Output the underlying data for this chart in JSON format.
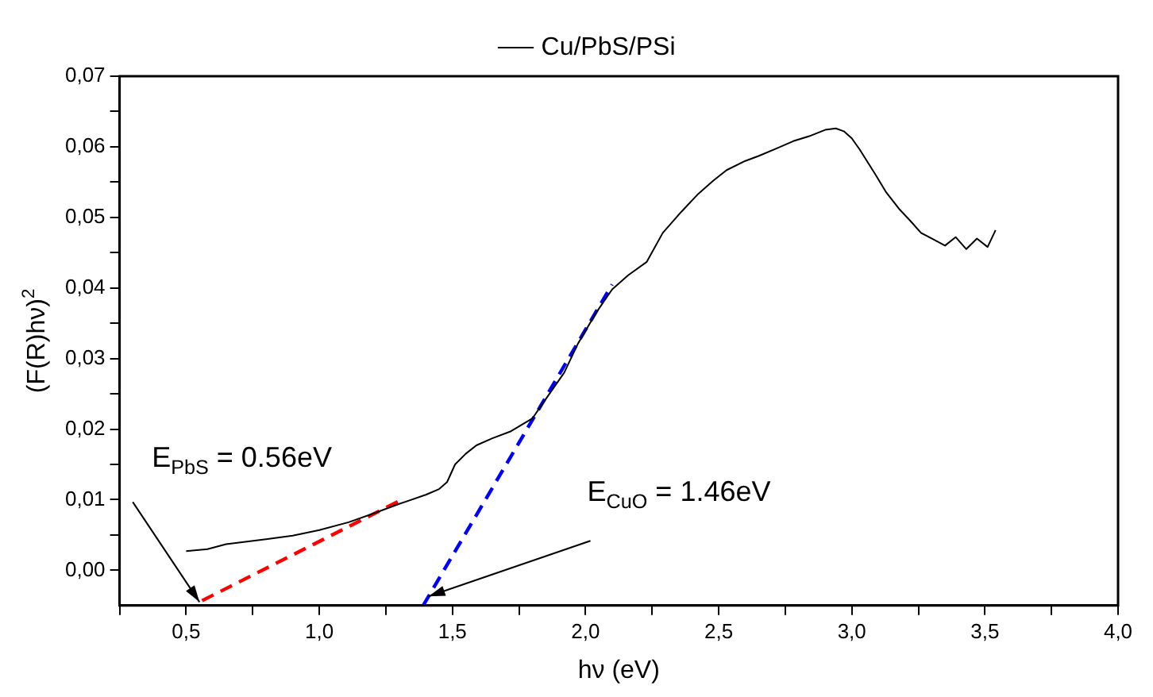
{
  "chart_data": {
    "type": "line",
    "xlabel": "hν (eV)",
    "ylabel": "(F(R)hν)$^{2}$",
    "xlim": [
      0.25,
      4.0
    ],
    "ylim": [
      -0.005,
      0.07
    ],
    "xticks": [
      {
        "value": 0.25,
        "label": null
      },
      {
        "value": 0.5,
        "label": "0,5"
      },
      {
        "value": 0.75,
        "label": null
      },
      {
        "value": 1.0,
        "label": "1,0"
      },
      {
        "value": 1.25,
        "label": null
      },
      {
        "value": 1.5,
        "label": "1,5"
      },
      {
        "value": 1.75,
        "label": null
      },
      {
        "value": 2.0,
        "label": "2,0"
      },
      {
        "value": 2.25,
        "label": null
      },
      {
        "value": 2.5,
        "label": "2,5"
      },
      {
        "value": 2.75,
        "label": null
      },
      {
        "value": 3.0,
        "label": "3,0"
      },
      {
        "value": 3.25,
        "label": null
      },
      {
        "value": 3.5,
        "label": "3,5"
      },
      {
        "value": 3.75,
        "label": null
      },
      {
        "value": 4.0,
        "label": "4,0"
      }
    ],
    "yticks": [
      {
        "value": 0,
        "label": "0,00"
      },
      {
        "value": 0.005,
        "label": null
      },
      {
        "value": 0.01,
        "label": "0,01"
      },
      {
        "value": 0.015,
        "label": null
      },
      {
        "value": 0.02,
        "label": "0,02"
      },
      {
        "value": 0.025,
        "label": null
      },
      {
        "value": 0.03,
        "label": "0,03"
      },
      {
        "value": 0.035,
        "label": null
      },
      {
        "value": 0.04,
        "label": "0,04"
      },
      {
        "value": 0.045,
        "label": null
      },
      {
        "value": 0.05,
        "label": "0,05"
      },
      {
        "value": 0.055,
        "label": null
      },
      {
        "value": 0.06,
        "label": "0,06"
      },
      {
        "value": 0.065,
        "label": null
      },
      {
        "value": 0.07,
        "label": "0,07"
      }
    ],
    "grid": false,
    "legend": "top",
    "marker": "none",
    "series": [
      {
        "name": "Cu/PbS/PSi",
        "color": "#000000",
        "line_style": "solid",
        "x": [
          0.5,
          0.58,
          0.65,
          0.8,
          0.9,
          1.0,
          1.11,
          1.2,
          1.3,
          1.4,
          1.45,
          1.48,
          1.51,
          1.55,
          1.59,
          1.65,
          1.72,
          1.8,
          1.87,
          1.92,
          1.97,
          2.04,
          2.1,
          2.16,
          2.23,
          2.29,
          2.36,
          2.42,
          2.48,
          2.53,
          2.6,
          2.65,
          2.72,
          2.78,
          2.84,
          2.9,
          2.94,
          2.97,
          3.0,
          3.03,
          3.09,
          3.13,
          3.18,
          3.22,
          3.26,
          3.3,
          3.35,
          3.39,
          3.43,
          3.47,
          3.51,
          3.54
        ],
        "values": [
          0.0027,
          0.003,
          0.0037,
          0.0044,
          0.0049,
          0.0057,
          0.0068,
          0.008,
          0.0094,
          0.0107,
          0.0115,
          0.0125,
          0.015,
          0.0165,
          0.0177,
          0.0187,
          0.0197,
          0.0215,
          0.0253,
          0.028,
          0.032,
          0.0365,
          0.0398,
          0.0418,
          0.0437,
          0.0478,
          0.0508,
          0.0532,
          0.0552,
          0.0567,
          0.058,
          0.0587,
          0.0598,
          0.0608,
          0.0615,
          0.0624,
          0.0626,
          0.0622,
          0.0612,
          0.0596,
          0.056,
          0.0535,
          0.0511,
          0.0495,
          0.0478,
          0.047,
          0.046,
          0.0472,
          0.0455,
          0.047,
          0.0458,
          0.0482
        ]
      },
      {
        "type": "line",
        "color": "#ff0000",
        "line_style": "dashed",
        "x": [
          0.56,
          1.31
        ],
        "values": [
          -0.0043,
          0.01
        ]
      },
      {
        "type": "line",
        "color": "#0000ff",
        "line_style": "dashed",
        "x": [
          1.39,
          2.1
        ],
        "values": [
          -0.005,
          0.0405
        ]
      }
    ],
    "annotations": [
      {
        "text": "E$_{PbS}$ = 0.56eV",
        "x": 0.55,
        "y": -0.0045
      },
      {
        "text": "E$_{CuO}$ = 1.46eV",
        "x": 1.41,
        "y": -0.0037
      }
    ]
  }
}
